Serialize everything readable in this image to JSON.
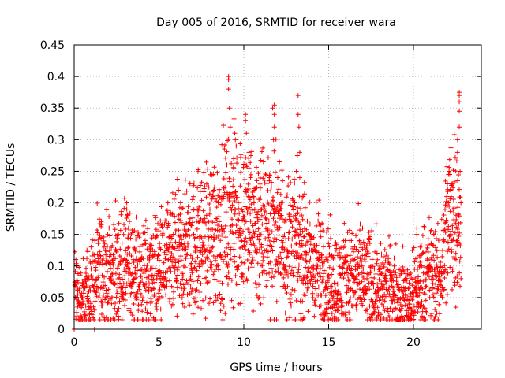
{
  "chart_data": {
    "type": "scatter",
    "title": "Day 005 of 2016, SRMTID for receiver wara",
    "xlabel": "GPS time / hours",
    "ylabel": "SRMTID / TECUs",
    "xlim": [
      0,
      24
    ],
    "ylim": [
      0,
      0.45
    ],
    "xticks": [
      0,
      5,
      10,
      15,
      20
    ],
    "xtick_labels": [
      "0",
      "5",
      "10",
      "15",
      "20"
    ],
    "yticks": [
      0,
      0.05,
      0.1,
      0.15,
      0.2,
      0.25,
      0.3,
      0.35,
      0.4,
      0.45
    ],
    "ytick_labels": [
      "0",
      "0.05",
      "0.1",
      "0.15",
      "0.2",
      "0.25",
      "0.3",
      "0.35",
      "0.4",
      "0.45"
    ],
    "grid": true,
    "marker": "+",
    "color": "#ff0000",
    "series": [
      {
        "name": "SRMTID",
        "envelope": {
          "description": "approximate trend (hours, typical SRMTID) of the dense point cloud",
          "x": [
            0.0,
            0.3,
            0.6,
            1.0,
            1.5,
            2.0,
            2.5,
            3.0,
            3.5,
            4.0,
            4.5,
            5.0,
            5.5,
            6.0,
            6.5,
            7.0,
            7.5,
            8.0,
            8.5,
            9.0,
            9.5,
            10.0,
            10.5,
            11.0,
            11.5,
            12.0,
            12.5,
            13.0,
            13.5,
            14.0,
            14.5,
            15.0,
            15.5,
            16.0,
            16.5,
            17.0,
            17.5,
            18.0,
            18.5,
            19.0,
            19.5,
            20.0,
            20.5,
            21.0,
            21.5,
            22.0,
            22.5,
            22.8
          ],
          "y": [
            0.07,
            0.045,
            0.05,
            0.07,
            0.09,
            0.09,
            0.09,
            0.1,
            0.09,
            0.085,
            0.09,
            0.095,
            0.1,
            0.11,
            0.125,
            0.13,
            0.14,
            0.15,
            0.16,
            0.17,
            0.17,
            0.175,
            0.165,
            0.16,
            0.17,
            0.15,
            0.14,
            0.13,
            0.12,
            0.1,
            0.1,
            0.08,
            0.075,
            0.08,
            0.085,
            0.08,
            0.075,
            0.07,
            0.065,
            0.055,
            0.05,
            0.05,
            0.08,
            0.09,
            0.07,
            0.17,
            0.2,
            0.13
          ]
        },
        "points": [
          [
            0.05,
            0.07
          ],
          [
            0.0,
            0.0
          ],
          [
            1.2,
            0.0
          ],
          [
            0.2,
            0.035
          ],
          [
            0.35,
            0.04
          ],
          [
            0.5,
            0.05
          ],
          [
            1.6,
            0.165
          ],
          [
            1.6,
            0.17
          ],
          [
            3.1,
            0.2
          ],
          [
            3.1,
            0.19
          ],
          [
            3.15,
            0.18
          ],
          [
            3.2,
            0.16
          ],
          [
            6.5,
            0.16
          ],
          [
            7.3,
            0.18
          ],
          [
            8.0,
            0.19
          ],
          [
            8.2,
            0.245
          ],
          [
            8.5,
            0.2
          ],
          [
            8.7,
            0.21
          ],
          [
            9.0,
            0.26
          ],
          [
            9.1,
            0.4
          ],
          [
            9.1,
            0.395
          ],
          [
            9.1,
            0.38
          ],
          [
            9.15,
            0.35
          ],
          [
            9.2,
            0.32
          ],
          [
            9.4,
            0.27
          ],
          [
            9.5,
            0.3
          ],
          [
            9.55,
            0.29
          ],
          [
            10.1,
            0.34
          ],
          [
            10.1,
            0.33
          ],
          [
            10.15,
            0.31
          ],
          [
            10.3,
            0.28
          ],
          [
            10.4,
            0.24
          ],
          [
            10.6,
            0.22
          ],
          [
            10.9,
            0.05
          ],
          [
            11.0,
            0.04
          ],
          [
            11.5,
            0.24
          ],
          [
            11.7,
            0.35
          ],
          [
            11.8,
            0.355
          ],
          [
            11.8,
            0.34
          ],
          [
            11.8,
            0.32
          ],
          [
            11.75,
            0.3
          ],
          [
            12.0,
            0.24
          ],
          [
            12.2,
            0.2
          ],
          [
            13.0,
            0.2
          ],
          [
            13.1,
            0.25
          ],
          [
            13.2,
            0.37
          ],
          [
            13.2,
            0.34
          ],
          [
            13.25,
            0.32
          ],
          [
            13.3,
            0.28
          ],
          [
            13.3,
            0.24
          ],
          [
            13.5,
            0.21
          ],
          [
            13.1,
            0.045
          ],
          [
            15.2,
            0.025
          ],
          [
            15.5,
            0.03
          ],
          [
            17.0,
            0.16
          ],
          [
            19.3,
            0.02
          ],
          [
            19.8,
            0.03
          ],
          [
            20.2,
            0.16
          ],
          [
            20.2,
            0.15
          ],
          [
            20.4,
            0.13
          ],
          [
            21.2,
            0.15
          ],
          [
            21.8,
            0.09
          ],
          [
            22.0,
            0.2
          ],
          [
            22.0,
            0.23
          ],
          [
            22.1,
            0.25
          ],
          [
            22.2,
            0.22
          ],
          [
            22.3,
            0.16
          ],
          [
            22.5,
            0.12
          ],
          [
            22.6,
            0.28
          ],
          [
            22.6,
            0.3
          ],
          [
            22.7,
            0.37
          ],
          [
            22.7,
            0.375
          ],
          [
            22.7,
            0.36
          ],
          [
            22.7,
            0.345
          ],
          [
            22.7,
            0.32
          ],
          [
            22.75,
            0.25
          ],
          [
            22.8,
            0.2
          ],
          [
            22.8,
            0.08
          ]
        ]
      }
    ]
  }
}
